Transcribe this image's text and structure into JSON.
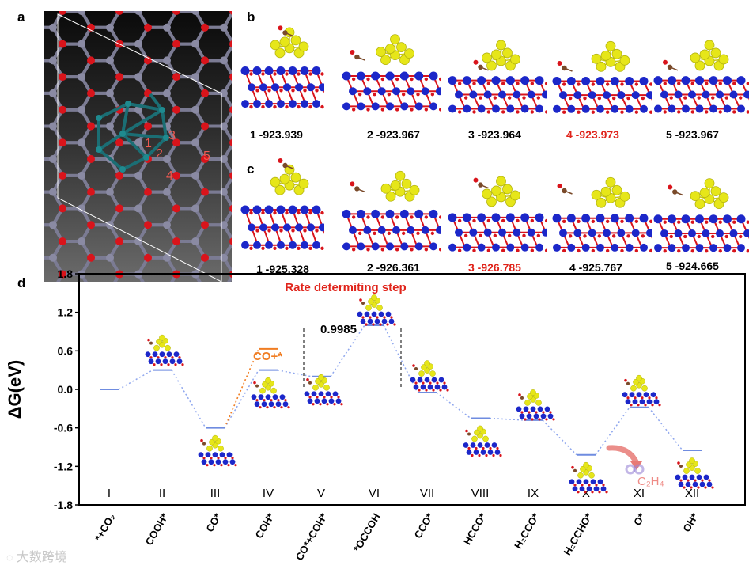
{
  "panel_labels": {
    "a": "a",
    "b": "b",
    "c": "c",
    "d": "d"
  },
  "panel_a": {
    "site_numbers": [
      "1",
      "2",
      "3",
      "4",
      "5"
    ]
  },
  "panel_b": {
    "captions": [
      {
        "text": "1 -923.939",
        "highlight": false
      },
      {
        "text": "2 -923.967",
        "highlight": false
      },
      {
        "text": "3 -923.964",
        "highlight": false
      },
      {
        "text": "4 -923.973",
        "highlight": true
      },
      {
        "text": "5 -923.967",
        "highlight": false
      }
    ]
  },
  "panel_c": {
    "captions": [
      {
        "text": "1 -925.328",
        "highlight": false
      },
      {
        "text": "2 -926.361",
        "highlight": false
      },
      {
        "text": "3 -926.785",
        "highlight": true
      },
      {
        "text": "4 -925.767",
        "highlight": false
      },
      {
        "text": "5 -924.665",
        "highlight": false
      }
    ]
  },
  "colors": {
    "red_highlight": "#e0241b",
    "orange": "#f07d22",
    "blue_level": "#6f8ce0",
    "dotted_path": "#8ea6ee",
    "atom_yellow": "#e6e619",
    "atom_blue": "#1c27c9",
    "atom_red": "#d9141b",
    "atom_grey": "#8a8aa3"
  },
  "chart_data": {
    "type": "line",
    "ylabel": "ΔG(eV)",
    "ylim": [
      -1.8,
      1.8
    ],
    "yticks": [
      "1.8",
      "1.2",
      "0.6",
      "0.0",
      "-0.6",
      "-1.2",
      "-1.8"
    ],
    "roman": [
      "I",
      "II",
      "III",
      "IV",
      "V",
      "VI",
      "VII",
      "VIII",
      "IX",
      "X",
      "XI",
      "XII"
    ],
    "categories": [
      "*+CO₂",
      "COOH*",
      "CO*",
      "COH*",
      "CO*+COH*",
      "*OCCOH",
      "CCO*",
      "HCCO*",
      "H₂CCO*",
      "H₂CCHO*",
      "O*",
      "OH*"
    ],
    "values": [
      0.0,
      0.3,
      -0.6,
      0.3,
      0.2,
      0.9985,
      -0.05,
      -0.45,
      -0.48,
      -1.02,
      -0.28,
      -0.95
    ],
    "branch": {
      "label": "CO+*",
      "value": 0.63
    },
    "annotations": {
      "rate_step": "Rate determiting step",
      "value_label": "0.9985",
      "product": "C₂H₄"
    }
  },
  "watermark": "大数跨境"
}
